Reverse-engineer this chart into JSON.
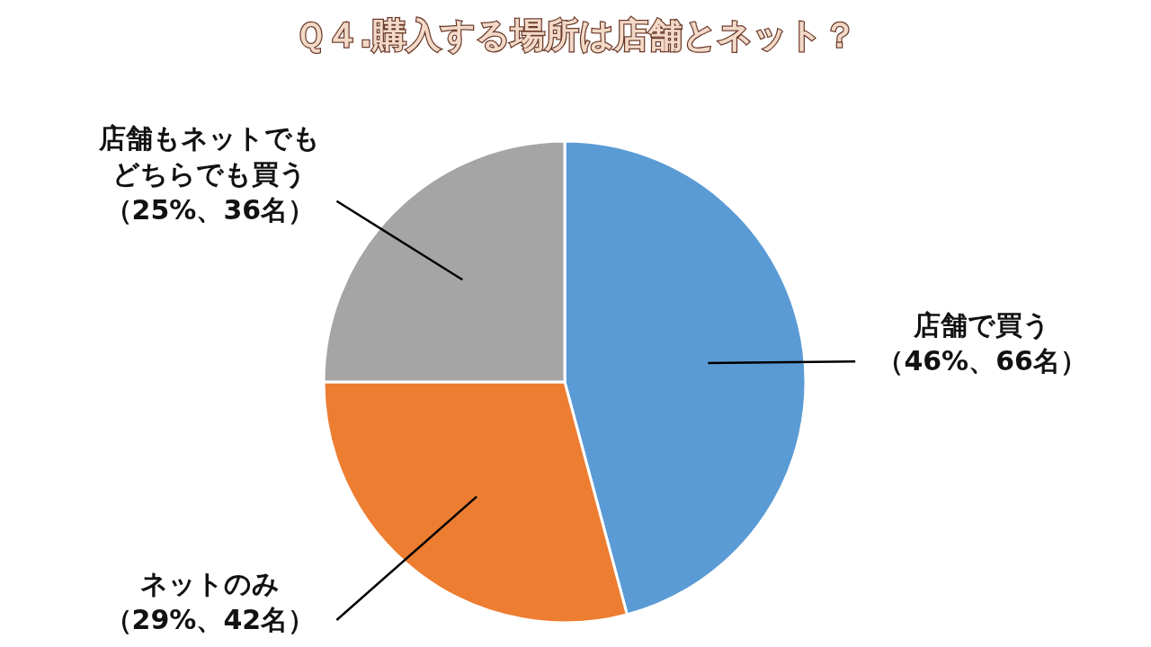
{
  "chart_data": {
    "type": "pie",
    "title": "Ｑ４.購入する場所は店舗とネット？",
    "categories": [
      "店舗で買う",
      "ネットのみ",
      "店舗もネットでもどちらでも買う"
    ],
    "values": [
      66,
      42,
      36
    ],
    "colors": [
      "#5b9bd5",
      "#ed7d31",
      "#a5a5a5"
    ],
    "value_labels": [
      "（46%、66名）",
      "（29%、42名）",
      "（25%、36名）"
    ]
  }
}
